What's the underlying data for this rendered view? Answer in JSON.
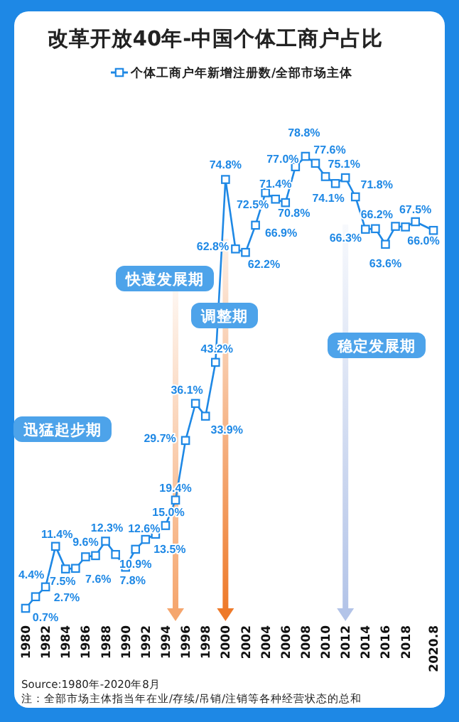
{
  "chart_data": {
    "type": "line",
    "title": "改革开放40年-中国个体工商户占比",
    "x": [
      1980,
      1981,
      1982,
      1983,
      1984,
      1985,
      1986,
      1987,
      1988,
      1989,
      1990,
      1991,
      1992,
      1993,
      1994,
      1995,
      1996,
      1997,
      1998,
      1999,
      2000,
      2001,
      2002,
      2003,
      2004,
      2005,
      2006,
      2007,
      2008,
      2009,
      2010,
      2011,
      2012,
      2013,
      2014,
      2015,
      2016,
      2017,
      2018,
      2019,
      2020.8
    ],
    "series": [
      {
        "name": "个体工商户年新增注册数/全部市场主体",
        "color": "#1e88e5",
        "values": [
          0.7,
          2.7,
          4.4,
          11.4,
          7.5,
          7.6,
          9.6,
          9.8,
          12.3,
          10.0,
          7.8,
          10.9,
          12.6,
          13.5,
          15.0,
          19.4,
          29.7,
          36.1,
          33.9,
          43.2,
          74.8,
          62.8,
          62.2,
          66.9,
          72.5,
          71.4,
          70.8,
          77.0,
          78.8,
          77.6,
          75.3,
          74.1,
          75.1,
          71.8,
          66.2,
          66.3,
          63.6,
          66.7,
          66.6,
          67.5,
          66.0
        ],
        "value_labels": [
          "0.7%",
          "2.7%",
          "4.4%",
          "11.4%",
          "7.5%",
          "7.6%",
          "9.6%",
          null,
          "12.3%",
          null,
          "7.8%",
          "10.9%",
          "12.6%",
          "13.5%",
          "15.0%",
          "19.4%",
          "29.7%",
          "36.1%",
          "33.9%",
          "43.2%",
          "74.8%",
          "62.8%",
          "62.2%",
          "66.9%",
          "72.5%",
          "71.4%",
          "70.8%",
          "77.0%",
          "78.8%",
          "77.6%",
          null,
          "74.1%",
          "75.1%",
          "71.8%",
          "66.2%",
          "66.3%",
          "63.6%",
          null,
          null,
          "67.5%",
          "66.0%"
        ]
      }
    ],
    "xlim": [
      1980,
      2020.8
    ],
    "xticks": [
      1980,
      1982,
      1984,
      1986,
      1988,
      1990,
      1992,
      1994,
      1996,
      1998,
      2000,
      2002,
      2004,
      2006,
      2008,
      2010,
      2012,
      2014,
      2016,
      2018,
      2020.8
    ],
    "marker": "square",
    "legend": "top",
    "ref_lines": [
      {
        "axis": "x",
        "value": 1995,
        "label": "快速发展期",
        "color": "#f5a66e"
      },
      {
        "axis": "x",
        "value": 2000,
        "label": "调整期",
        "color": "#ee7a2a"
      },
      {
        "axis": "x",
        "value": 2012,
        "label": "稳定发展期",
        "color": "#b3c4e8"
      }
    ],
    "annotations": [
      "迅猛起步期",
      "Source:1980年-2020年8月",
      "注：全部市场主体指当年在业/存续/吊销/注销等各种经营状态的总和"
    ]
  }
}
